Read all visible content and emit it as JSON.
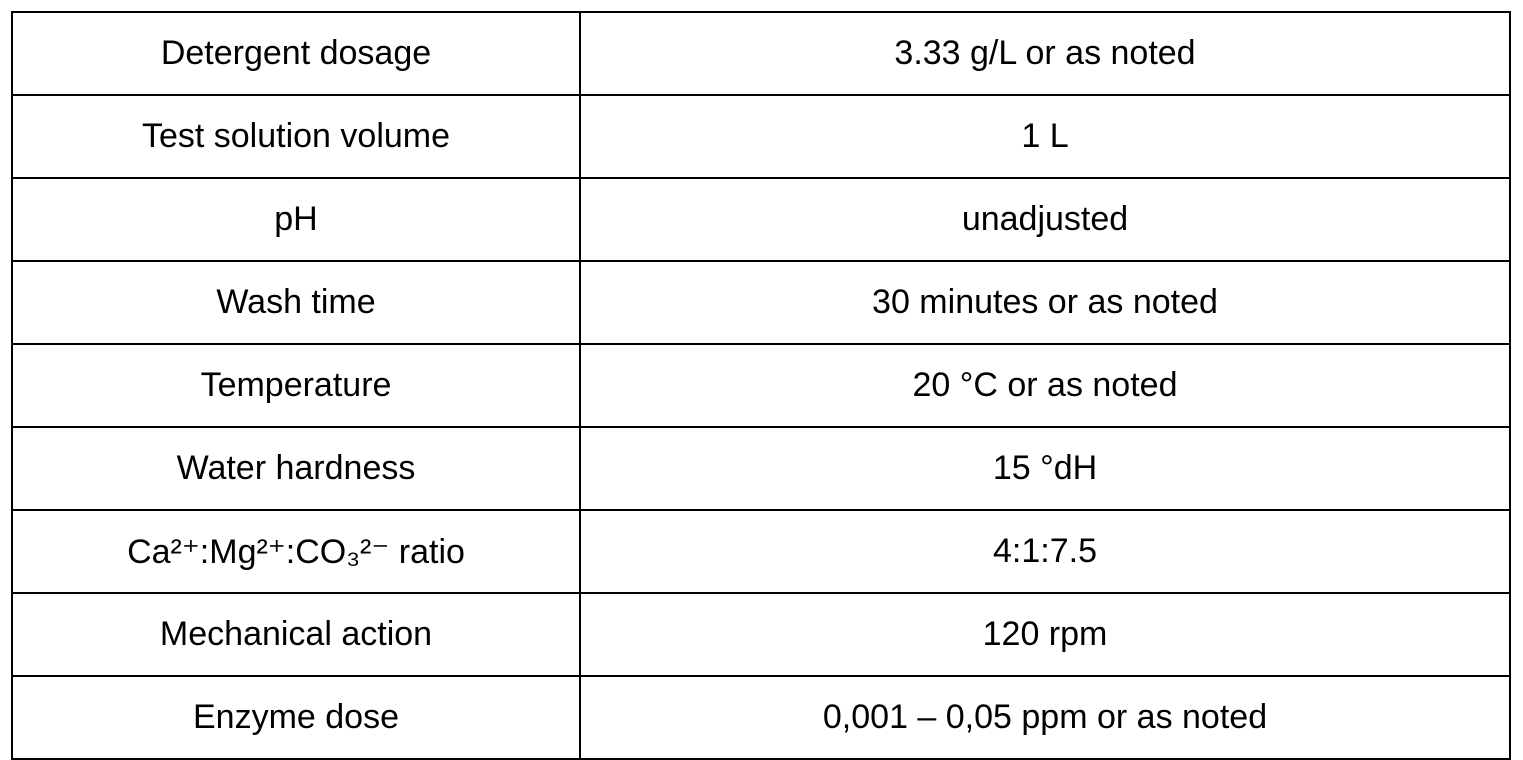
{
  "table": {
    "rows": [
      [
        "Detergent dosage",
        "3.33 g/L or as noted"
      ],
      [
        "Test solution volume",
        "1 L"
      ],
      [
        "pH",
        "unadjusted"
      ],
      [
        "Wash time",
        "30 minutes or as noted"
      ],
      [
        "Temperature",
        "20 °C or as noted"
      ],
      [
        "Water hardness",
        "15 °dH"
      ],
      [
        "Ca²⁺:Mg²⁺:CO₃²⁻ ratio",
        "4:1:7.5"
      ],
      [
        "Mechanical action",
        "120 rpm"
      ],
      [
        "Enzyme dose",
        "0,001 – 0,05 ppm or as noted"
      ]
    ]
  }
}
